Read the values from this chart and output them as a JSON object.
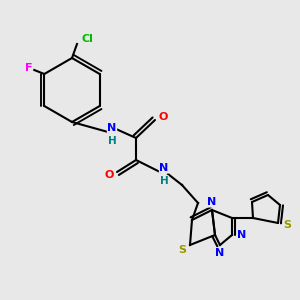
{
  "background_color": "#e8e8e8",
  "colors": {
    "C": "#000000",
    "N": "#0000ff",
    "O": "#ff0000",
    "S": "#999900",
    "F": "#ff00ff",
    "Cl": "#00bb00",
    "H": "#008080",
    "bond": "#000000"
  },
  "figsize": [
    3.0,
    3.0
  ],
  "dpi": 100
}
